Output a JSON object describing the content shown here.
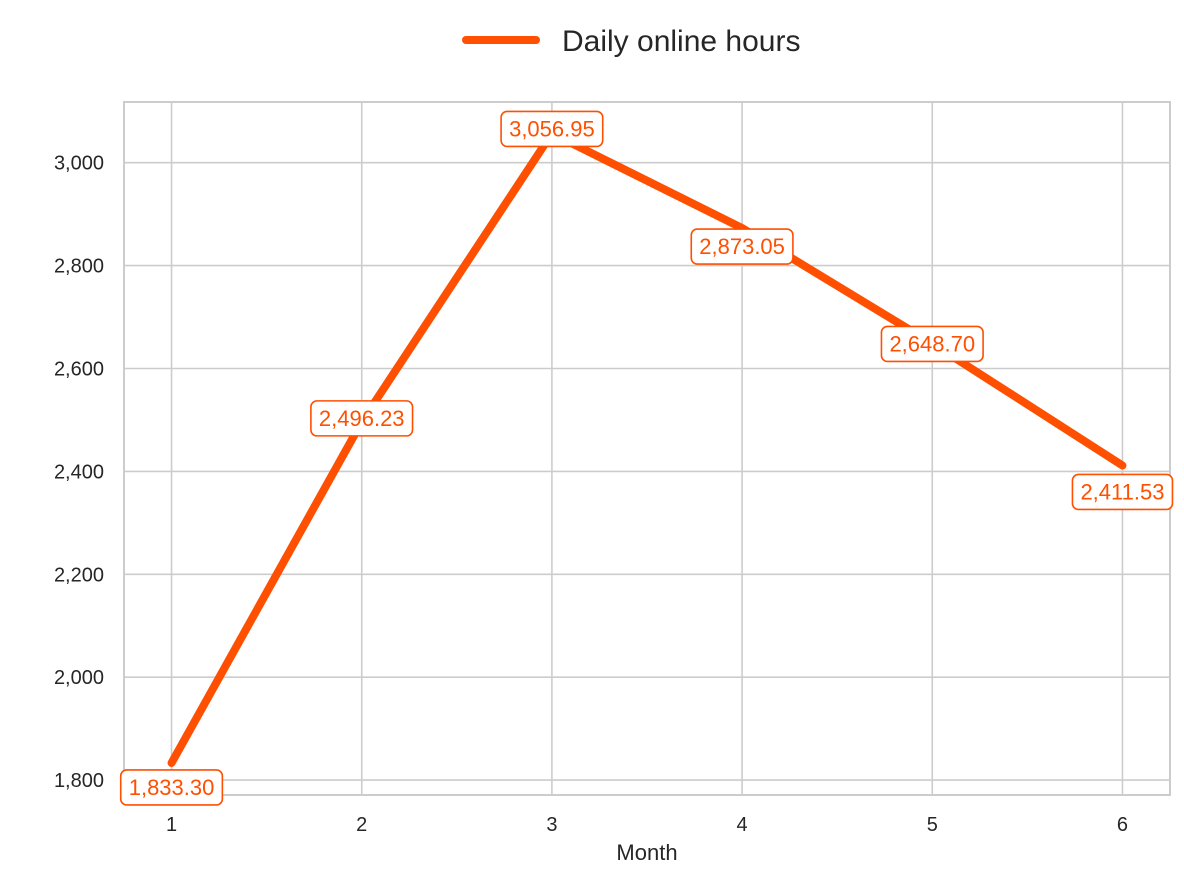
{
  "chart_data": {
    "type": "line",
    "x": [
      1,
      2,
      3,
      4,
      5,
      6
    ],
    "series": [
      {
        "name": "Daily online hours",
        "values": [
          1833.3,
          2496.23,
          3056.95,
          2873.05,
          2648.7,
          2411.53
        ],
        "labels": [
          "1,833.30",
          "2,496.23",
          "3,056.95",
          "2,873.05",
          "2,648.70",
          "2,411.53"
        ]
      }
    ],
    "xlabel": "Month",
    "ylabel": "",
    "title": "",
    "xlim": [
      0.75,
      6.25
    ],
    "ylim": [
      1771,
      3118
    ],
    "xticks": [
      1,
      2,
      3,
      4,
      5,
      6
    ],
    "xtick_labels": [
      "1",
      "2",
      "3",
      "4",
      "5",
      "6"
    ],
    "yticks": [
      1800,
      2000,
      2200,
      2400,
      2600,
      2800,
      3000
    ],
    "ytick_labels": [
      "1,800",
      "2,000",
      "2,200",
      "2,400",
      "2,600",
      "2,800",
      "3,000"
    ],
    "grid": true,
    "legend_position": "top-center",
    "colors": {
      "series": "#ff4f00",
      "grid": "#cccccc",
      "frame": "#cccccc",
      "text": "#262626",
      "label_box_fill": "#ffffff"
    }
  }
}
